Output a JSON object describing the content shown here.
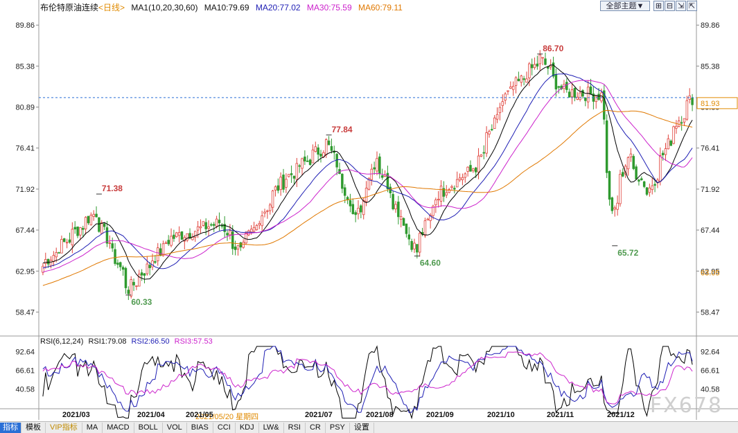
{
  "header": {
    "instrument": "布伦特原油连续",
    "period": "<日线>",
    "ma_param": "MA1(10,20,30,60)",
    "ma10": "MA10:79.69",
    "ma20": "MA20:77.02",
    "ma30": "MA30:75.59",
    "ma60": "MA60:79.11"
  },
  "toolbar": {
    "theme_select": "全部主题▼",
    "icon_names": [
      "grid-plus-icon",
      "grid-minus-icon",
      "shrink-icon",
      "expand-icon"
    ]
  },
  "rsi_header": {
    "param": "RSI(6,12,24)",
    "rsi1": "RSI1:79.08",
    "rsi2": "RSI2:66.50",
    "rsi3": "RSI3:57.53"
  },
  "price_axis": {
    "ticks": [
      "89.86",
      "85.38",
      "80.89",
      "76.41",
      "71.92",
      "67.44",
      "62.95",
      "58.47"
    ]
  },
  "price_tags": {
    "current": "81.93",
    "ma_level": "63.05"
  },
  "rsi_axis": {
    "ticks": [
      "92.64",
      "66.61",
      "40.58"
    ]
  },
  "date_axis": {
    "labels": [
      "2021/03",
      "2021/04",
      "2021/05",
      "2021/07",
      "2021/08",
      "2021/09",
      "2021/10",
      "2021/11",
      "2021/12"
    ],
    "highlight": "2021/05/20 星期四"
  },
  "annotations": {
    "a1": "71.38",
    "a2": "60.33",
    "a3": "77.84",
    "a4": "64.60",
    "a5": "86.70",
    "a6": "65.72"
  },
  "tabs": [
    "指标",
    "模板",
    "VIP指标",
    "MA",
    "MACD",
    "BOLL",
    "VOL",
    "BIAS",
    "CCI",
    "KDJ",
    "LW&",
    "RSI",
    "CR",
    "PSY",
    "设置"
  ],
  "watermark": "FX678",
  "colors": {
    "up": "#e0413a",
    "down": "#2f9a2f",
    "ma10": "#000000",
    "ma20": "#1e1eb4",
    "ma30": "#cc22cc",
    "ma60": "#e07800"
  },
  "chart_data": {
    "type": "candlestick",
    "title": "布伦特原油连续",
    "ylim": [
      56.0,
      92.0
    ],
    "rsi_ylim": [
      15,
      100
    ],
    "anchors": [
      {
        "date": "2021/02/05",
        "close": 63.5
      },
      {
        "date": "2021/03/05",
        "close": 69.4
      },
      {
        "date": "2021/03/23",
        "close": 61.0
      },
      {
        "date": "2021/04/14",
        "close": 66.6
      },
      {
        "date": "2021/05/10",
        "close": 68.3
      },
      {
        "date": "2021/05/20",
        "close": 65.0
      },
      {
        "date": "2021/06/10",
        "close": 72.5
      },
      {
        "date": "2021/07/05",
        "close": 77.0
      },
      {
        "date": "2021/07/20",
        "close": 68.6
      },
      {
        "date": "2021/07/30",
        "close": 75.5
      },
      {
        "date": "2021/08/20",
        "close": 65.1
      },
      {
        "date": "2021/09/01",
        "close": 71.5
      },
      {
        "date": "2021/09/21",
        "close": 74.4
      },
      {
        "date": "2021/10/06",
        "close": 82.0
      },
      {
        "date": "2021/10/25",
        "close": 86.2
      },
      {
        "date": "2021/11/05",
        "close": 82.6
      },
      {
        "date": "2021/11/25",
        "close": 82.2
      },
      {
        "date": "2021/12/01",
        "close": 68.9
      },
      {
        "date": "2021/12/09",
        "close": 75.5
      },
      {
        "date": "2021/12/20",
        "close": 71.5
      },
      {
        "date": "2022/01/03",
        "close": 78.9
      },
      {
        "date": "2022/01/12",
        "close": 81.9
      }
    ],
    "extremes": [
      {
        "label": "71.38",
        "date": "2021/03/08",
        "value": 71.38,
        "kind": "high"
      },
      {
        "label": "60.33",
        "date": "2021/03/23",
        "value": 60.33,
        "kind": "low"
      },
      {
        "label": "77.84",
        "date": "2021/07/06",
        "value": 77.84,
        "kind": "high"
      },
      {
        "label": "64.60",
        "date": "2021/08/20",
        "value": 64.6,
        "kind": "low"
      },
      {
        "label": "86.70",
        "date": "2021/10/25",
        "value": 86.7,
        "kind": "high"
      },
      {
        "label": "65.72",
        "date": "2021/12/02",
        "value": 65.72,
        "kind": "low"
      }
    ],
    "current_price": 81.93,
    "moving_averages": [
      {
        "name": "MA10",
        "last": 79.69
      },
      {
        "name": "MA20",
        "last": 77.02
      },
      {
        "name": "MA30",
        "last": 75.59
      },
      {
        "name": "MA60",
        "last": 79.11
      }
    ],
    "rsi": [
      {
        "name": "RSI1",
        "last": 79.08
      },
      {
        "name": "RSI2",
        "last": 66.5
      },
      {
        "name": "RSI3",
        "last": 57.53
      }
    ]
  }
}
